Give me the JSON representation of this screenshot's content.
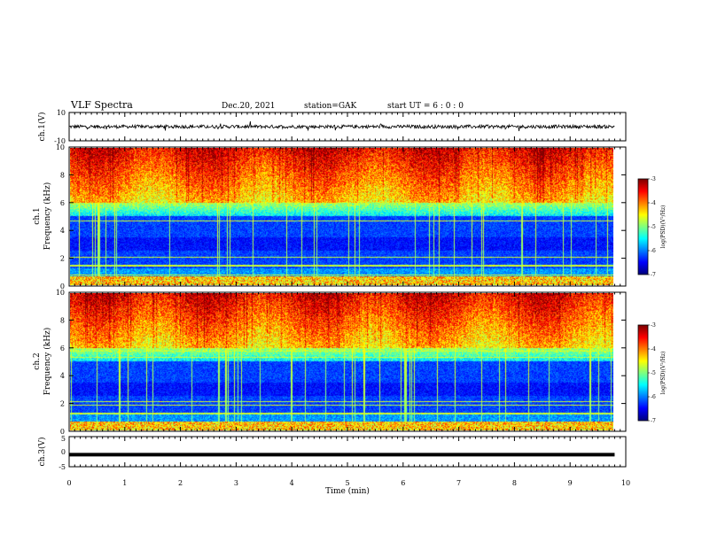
{
  "header": {
    "title": "VLF Spectra",
    "date": "Dec.20, 2021",
    "station": "station=GAK",
    "start": "start UT = 6 : 0 : 0"
  },
  "colors": {
    "trace": "#000000",
    "background": "#ffffff"
  },
  "chart_data": [
    {
      "type": "line",
      "name": "ch1-waveform",
      "ylabel": "ch.1(V)",
      "ylim": [
        -10,
        10
      ],
      "yticks": [
        "10",
        "-10"
      ],
      "xlim": [
        0,
        10
      ],
      "trace_level": 0,
      "trace_noise_amplitude": 1.2
    },
    {
      "type": "heatmap",
      "name": "ch1-spectrogram",
      "ylabel": "ch.1\nFrequency (kHz)",
      "ylim": [
        0,
        10
      ],
      "yticks": [
        "0",
        "2",
        "4",
        "6",
        "8",
        "10"
      ],
      "xlim": [
        0,
        10
      ],
      "colorbar": {
        "label": "log(PSD)(V²/Hz)",
        "range": [
          -7,
          -3
        ],
        "ticks": [
          "-3",
          "-4",
          "-5",
          "-6",
          "-7"
        ]
      }
    },
    {
      "type": "heatmap",
      "name": "ch2-spectrogram",
      "ylabel": "ch.2\nFrequency (kHz)",
      "ylim": [
        0,
        10
      ],
      "yticks": [
        "0",
        "2",
        "4",
        "6",
        "8",
        "10"
      ],
      "xlim": [
        0,
        10
      ],
      "colorbar": {
        "label": "log(PSD)(V²/Hz)",
        "range": [
          -7,
          -3
        ],
        "ticks": [
          "-3",
          "-4",
          "-5",
          "-6",
          "-7"
        ]
      }
    },
    {
      "type": "line",
      "name": "ch3-waveform",
      "ylabel": "ch.3(V)",
      "ylim": [
        -5,
        5
      ],
      "yticks": [
        "5",
        "0",
        "-5"
      ],
      "xlim": [
        0,
        10
      ],
      "trace_level": -1.0
    }
  ],
  "xaxis": {
    "label": "Time (min)",
    "ticks": [
      "0",
      "1",
      "2",
      "3",
      "4",
      "5",
      "6",
      "7",
      "8",
      "9",
      "10"
    ]
  }
}
